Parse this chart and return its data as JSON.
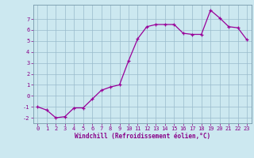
{
  "x": [
    0,
    1,
    2,
    3,
    4,
    5,
    6,
    7,
    8,
    9,
    10,
    11,
    12,
    13,
    14,
    15,
    16,
    17,
    18,
    19,
    20,
    21,
    22,
    23
  ],
  "y": [
    -1.0,
    -1.3,
    -2.0,
    -1.9,
    -1.1,
    -1.1,
    -0.3,
    0.5,
    0.8,
    1.0,
    3.2,
    5.2,
    6.3,
    6.5,
    6.5,
    6.5,
    5.7,
    5.6,
    5.6,
    7.8,
    7.1,
    6.3,
    6.2,
    5.1
  ],
  "line_color": "#990099",
  "marker": "+",
  "bg_color": "#cce8f0",
  "grid_color": "#99bbcc",
  "xlabel": "Windchill (Refroidissement éolien,°C)",
  "xlabel_color": "#880088",
  "tick_color": "#880088",
  "ylim": [
    -2.5,
    8.3
  ],
  "xlim": [
    -0.5,
    23.5
  ],
  "yticks": [
    -2,
    -1,
    0,
    1,
    2,
    3,
    4,
    5,
    6,
    7
  ],
  "xticks": [
    0,
    1,
    2,
    3,
    4,
    5,
    6,
    7,
    8,
    9,
    10,
    11,
    12,
    13,
    14,
    15,
    16,
    17,
    18,
    19,
    20,
    21,
    22,
    23
  ],
  "fig_bg_color": "#cce8f0",
  "spine_color": "#7799aa"
}
